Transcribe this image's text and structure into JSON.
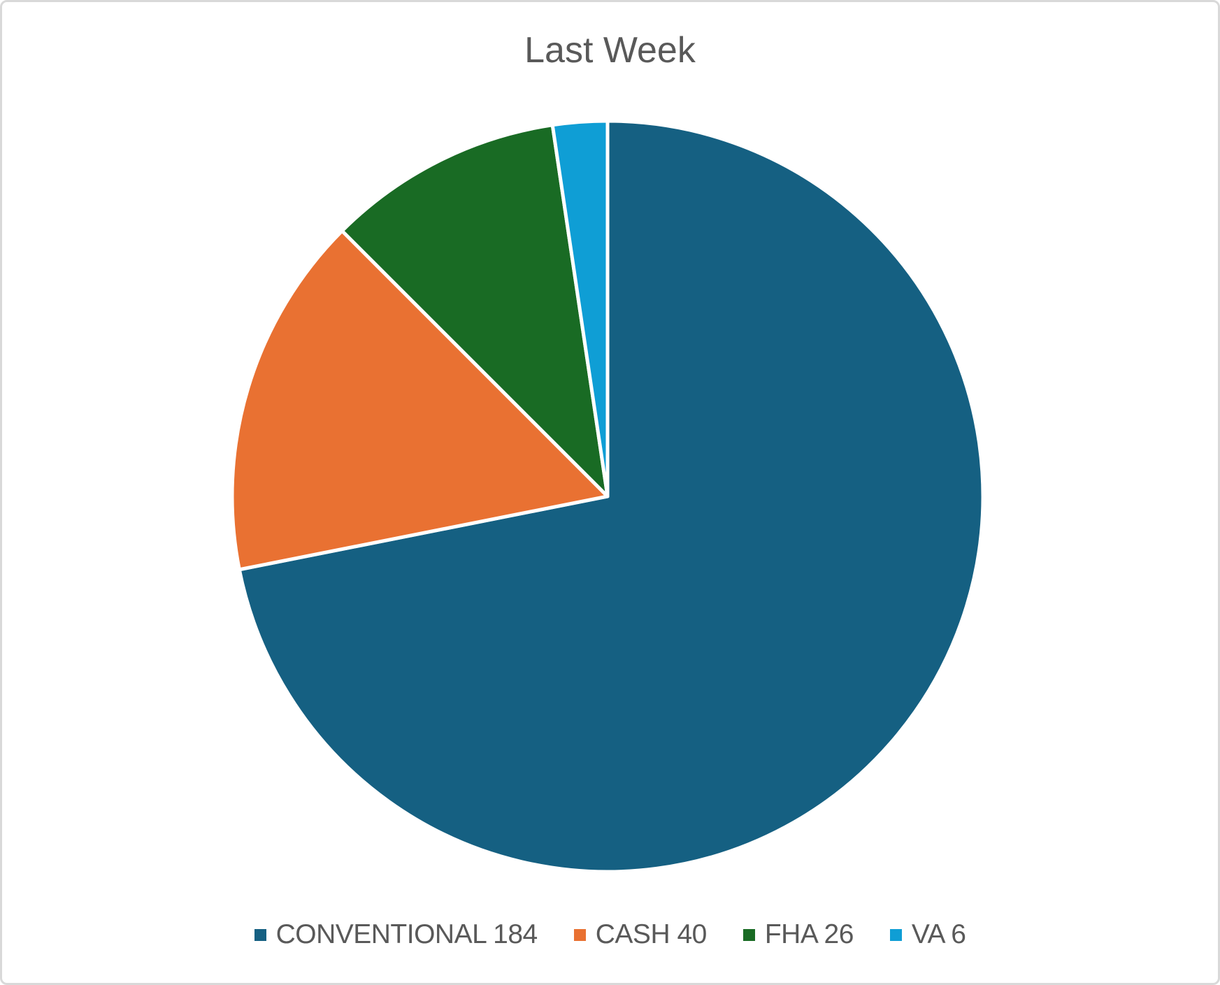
{
  "chart_data": {
    "type": "pie",
    "title": "Last Week",
    "total": 256,
    "start_angle_deg": 0,
    "direction": "clockwise",
    "legend_position": "bottom",
    "slice_border_color": "#FFFFFF",
    "title_color": "#595959",
    "legend_text_color": "#595959",
    "frame_border_color": "#D9D9D9",
    "slices": [
      {
        "label": "CONVENTIONAL",
        "value": 184,
        "color": "#156082",
        "legend_label": "CONVENTIONAL 184"
      },
      {
        "label": "CASH",
        "value": 40,
        "color": "#E97132",
        "legend_label": "CASH 40"
      },
      {
        "label": "FHA",
        "value": 26,
        "color": "#196B24",
        "legend_label": "FHA 26"
      },
      {
        "label": "VA",
        "value": 6,
        "color": "#0F9ED5",
        "legend_label": "VA 6"
      }
    ]
  }
}
